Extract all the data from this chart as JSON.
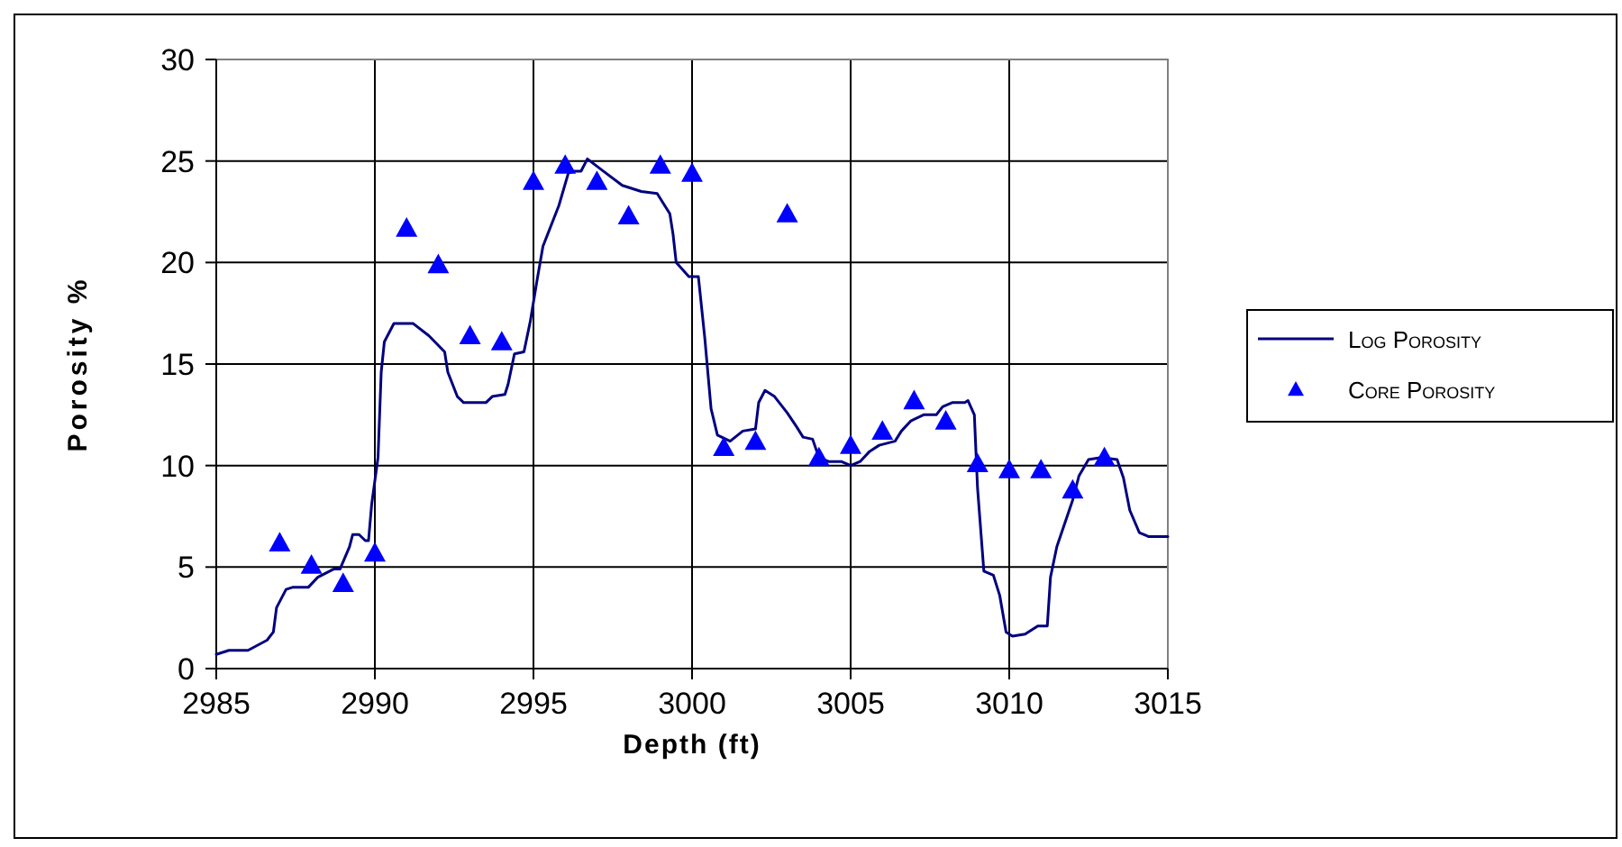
{
  "chart_data": {
    "type": "line",
    "xlabel": "Depth (ft)",
    "ylabel": "Porosity %",
    "xlim": [
      2985,
      3015
    ],
    "xticks": [
      2985,
      2990,
      2995,
      3000,
      3005,
      3010,
      3015
    ],
    "ylim": [
      0,
      30
    ],
    "yticks": [
      0,
      5,
      10,
      15,
      20,
      25,
      30
    ],
    "grid": true,
    "legend": "right",
    "series": [
      {
        "name": "Log Porosity",
        "color": "#000080",
        "marker": "none",
        "line_style": "solid",
        "x": [
          2985,
          2985.4,
          2986,
          2986.6,
          2986.8,
          2986.9,
          2987.2,
          2987.4,
          2987.9,
          2988.2,
          2988.7,
          2988.9,
          2989.2,
          2989.3,
          2989.5,
          2989.7,
          2989.8,
          2989.9,
          2990.1,
          2990.2,
          2990.3,
          2990.6,
          2991.2,
          2991.7,
          2992.2,
          2992.3,
          2992.6,
          2992.8,
          2993.5,
          2993.7,
          2994.1,
          2994.2,
          2994.4,
          2994.7,
          2994.9,
          2995.1,
          2995.3,
          2995.8,
          2996.1,
          2996.3,
          2996.5,
          2996.7,
          2997.2,
          2997.8,
          2998.4,
          2998.9,
          2999.3,
          2999.4,
          2999.5,
          2999.9,
          3000.2,
          3000.4,
          3000.6,
          3000.8,
          3001.2,
          3001.6,
          3002.0,
          3002.1,
          3002.3,
          3002.6,
          3003.0,
          3003.3,
          3003.5,
          3003.8,
          3004.0,
          3004.3,
          3004.7,
          3005.0,
          3005.3,
          3005.6,
          3005.9,
          3006.4,
          3006.6,
          3006.9,
          3007.3,
          3007.7,
          3007.9,
          3008.2,
          3008.6,
          3008.7,
          3008.9,
          3009.0,
          3009.2,
          3009.5,
          3009.7,
          3009.9,
          3010.1,
          3010.5,
          3010.9,
          3011.2,
          3011.3,
          3011.5,
          3012.0,
          3012.2,
          3012.5,
          3012.9,
          3013.4,
          3013.6,
          3013.8,
          3014.1,
          3014.4,
          3015
        ],
        "values": [
          0.7,
          0.9,
          0.9,
          1.4,
          1.8,
          3.0,
          3.9,
          4.0,
          4.0,
          4.5,
          4.9,
          4.9,
          6.0,
          6.6,
          6.6,
          6.3,
          6.3,
          8.1,
          10.4,
          14.6,
          16.1,
          17.0,
          17.0,
          16.4,
          15.6,
          14.6,
          13.4,
          13.1,
          13.1,
          13.4,
          13.5,
          14.0,
          15.5,
          15.6,
          17.1,
          19.0,
          20.8,
          22.8,
          24.4,
          24.5,
          24.5,
          25.1,
          24.5,
          23.8,
          23.5,
          23.4,
          22.4,
          21.4,
          20.0,
          19.3,
          19.3,
          16.3,
          12.8,
          11.5,
          11.2,
          11.7,
          11.8,
          13.1,
          13.7,
          13.4,
          12.6,
          11.9,
          11.4,
          11.3,
          10.4,
          10.2,
          10.2,
          10.0,
          10.2,
          10.7,
          11.0,
          11.2,
          11.7,
          12.2,
          12.5,
          12.5,
          12.9,
          13.1,
          13.1,
          13.2,
          12.5,
          8.9,
          4.8,
          4.6,
          3.6,
          1.8,
          1.6,
          1.7,
          2.1,
          2.1,
          4.5,
          6.0,
          8.3,
          9.5,
          10.3,
          10.4,
          10.3,
          9.4,
          7.8,
          6.7,
          6.5,
          6.5
        ]
      },
      {
        "name": "Core Porosity",
        "type": "scatter",
        "color": "#0000ff",
        "marker": "triangle",
        "x": [
          2987,
          2988,
          2989,
          2990,
          2991,
          2992,
          2993,
          2994,
          2995,
          2996,
          2997,
          2998,
          2999,
          3000,
          3001,
          3002,
          3003,
          3004,
          3005,
          3006,
          3007,
          3008,
          3009,
          3010,
          3011,
          3012,
          3013
        ],
        "values": [
          6.2,
          5.1,
          4.2,
          5.7,
          21.7,
          19.9,
          16.4,
          16.1,
          24.0,
          24.8,
          24.0,
          22.3,
          24.8,
          24.4,
          10.9,
          11.2,
          22.4,
          10.4,
          11.0,
          11.7,
          13.2,
          12.2,
          10.1,
          9.8,
          9.8,
          8.8,
          10.4
        ]
      }
    ]
  }
}
